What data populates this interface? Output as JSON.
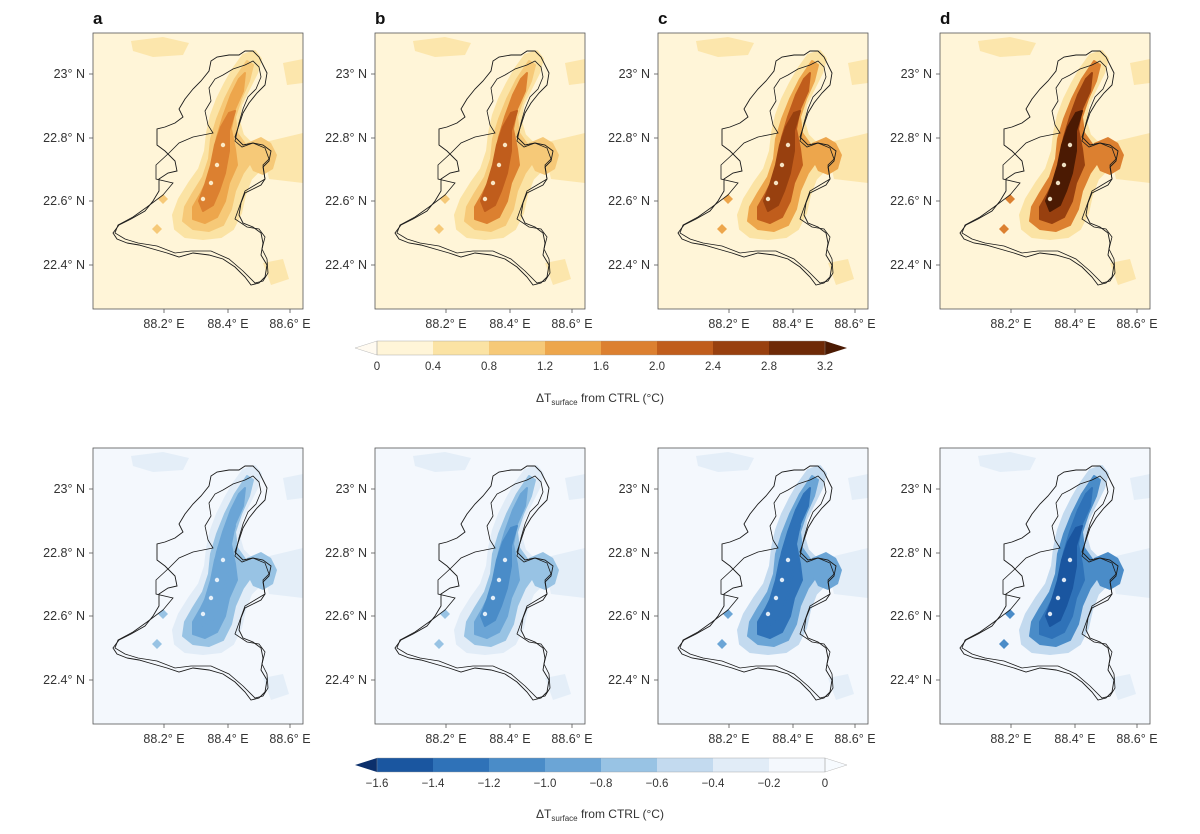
{
  "panel_labels": [
    "a",
    "b",
    "c",
    "d"
  ],
  "axes": {
    "lat_ticks": [
      "23° N",
      "22.8° N",
      "22.6° N",
      "22.4° N"
    ],
    "lon_ticks": [
      "88.2° E",
      "88.4° E",
      "88.6° E"
    ]
  },
  "colorbars": [
    {
      "id": "warm",
      "ticks": [
        "0",
        "0.4",
        "0.8",
        "1.2",
        "1.6",
        "2.0",
        "2.4",
        "2.8",
        "3.2"
      ],
      "title_prefix": "ΔT",
      "title_sub": "surface",
      "title_suffix": " from CTRL (°C)",
      "colors": [
        "#fff5d8",
        "#fbe3a4",
        "#f6c978",
        "#eda64c",
        "#dc8030",
        "#c05d1c",
        "#98400f",
        "#6e2a07",
        "#4b1a03"
      ]
    },
    {
      "id": "cool",
      "ticks": [
        "−1.6",
        "−1.4",
        "−1.2",
        "−1.0",
        "−0.8",
        "−0.6",
        "−0.4",
        "−0.2",
        "0"
      ],
      "title_prefix": "ΔT",
      "title_sub": "surface",
      "title_suffix": " from CTRL (°C)",
      "colors": [
        "#0b2f6b",
        "#1a56a0",
        "#2f72b8",
        "#4a8cc8",
        "#6ba5d6",
        "#98c3e4",
        "#c3daef",
        "#e1ecf7",
        "#f4f8fd"
      ]
    }
  ],
  "map_data": {
    "warm_panels": [
      {
        "label": "a",
        "levels": [
          1,
          2,
          3,
          4
        ]
      },
      {
        "label": "b",
        "levels": [
          1,
          2,
          4,
          5
        ]
      },
      {
        "label": "c",
        "levels": [
          1,
          3,
          5,
          6
        ]
      },
      {
        "label": "d",
        "levels": [
          1,
          4,
          6,
          8
        ]
      }
    ],
    "cool_panels": [
      {
        "levels": [
          7,
          5,
          4,
          4
        ]
      },
      {
        "levels": [
          7,
          5,
          4,
          3
        ]
      },
      {
        "levels": [
          6,
          4,
          2,
          2
        ]
      },
      {
        "levels": [
          6,
          3,
          2,
          1
        ]
      }
    ]
  }
}
